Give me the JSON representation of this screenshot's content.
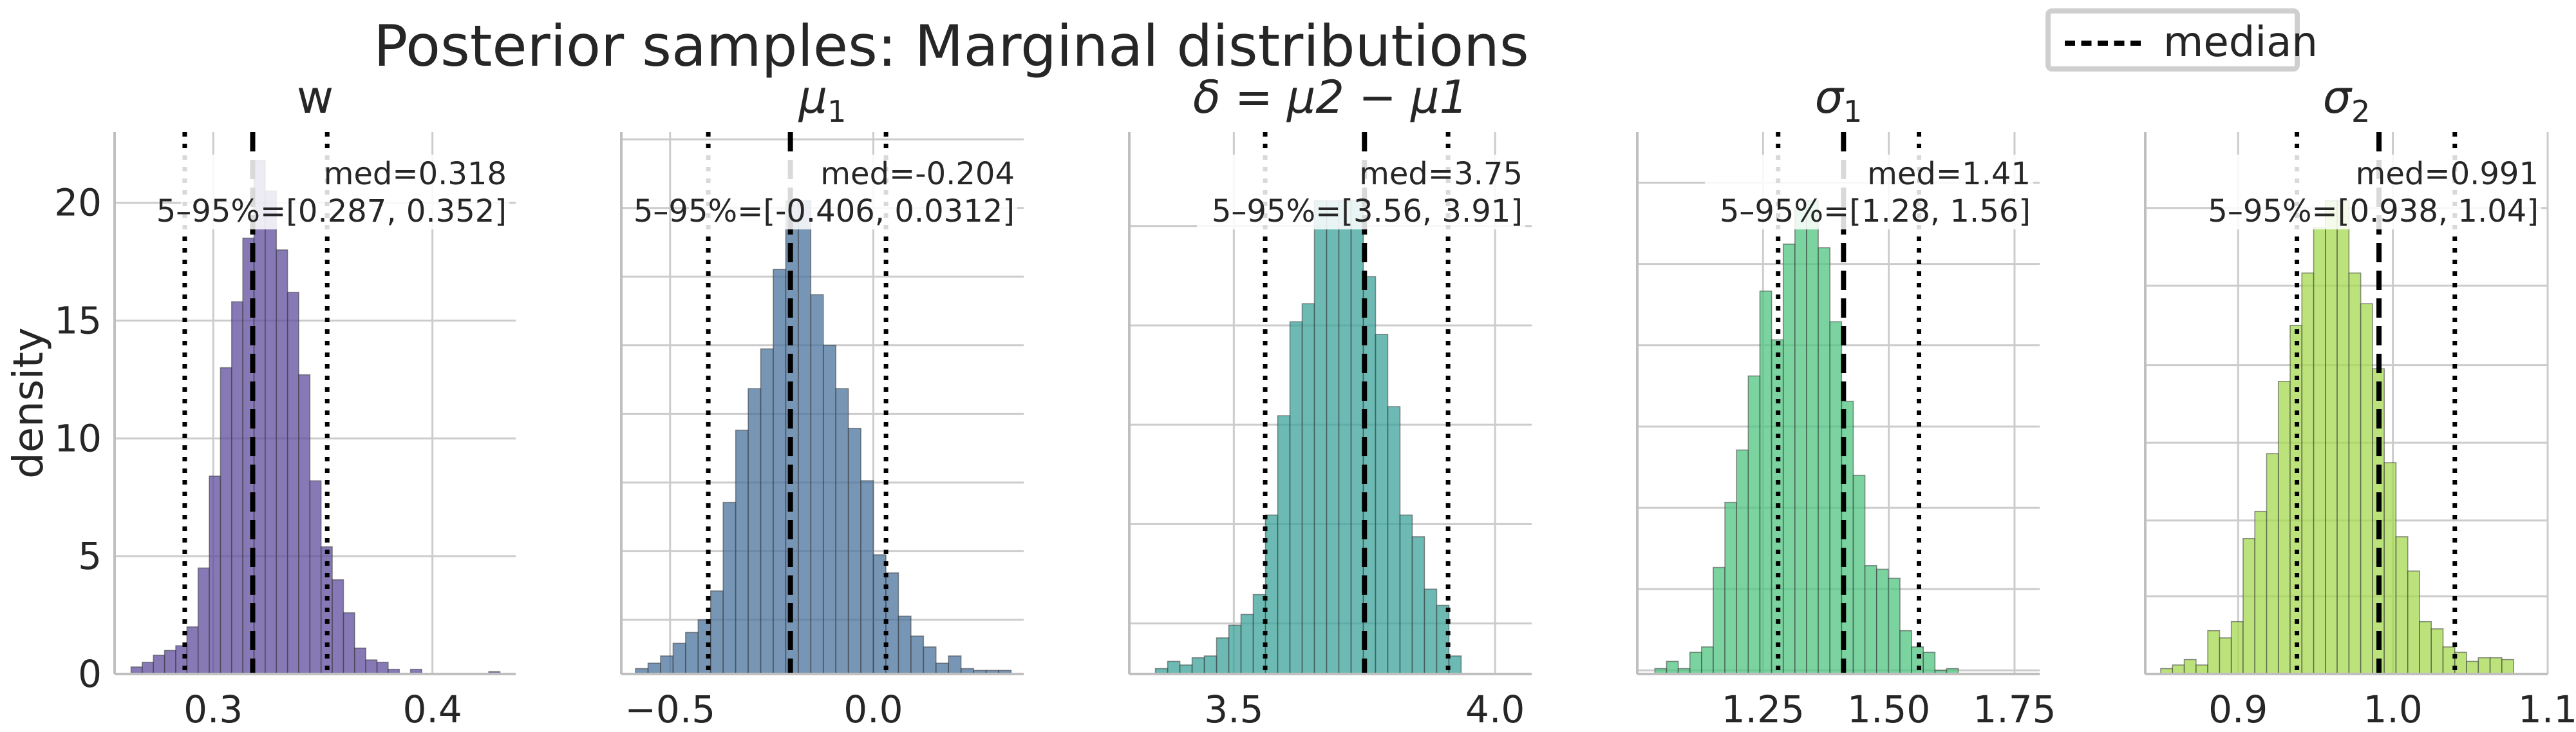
{
  "figure": {
    "suptitle": "Posterior samples: Marginal distributions",
    "legend": {
      "entries": [
        {
          "label": "median",
          "style": "dashed",
          "color": "#000000"
        }
      ],
      "placement": "top-right"
    }
  },
  "chart_data": [
    {
      "type": "bar",
      "title": "w",
      "xlabel": "",
      "ylabel": "density",
      "xlim": [
        0.255,
        0.438
      ],
      "ylim": [
        0,
        23
      ],
      "xticks": [
        0.3,
        0.4
      ],
      "xtick_labels": [
        "0.3",
        "0.4"
      ],
      "yticks": [
        0,
        5,
        10,
        15,
        20
      ],
      "ytick_labels": [
        "0",
        "5",
        "10",
        "15",
        "20"
      ],
      "grid": true,
      "color": "#5e4c9c",
      "bin_start": 0.2625,
      "bin_width": 0.0051,
      "values": [
        0.3,
        0.5,
        0.8,
        1.0,
        1.2,
        2.0,
        4.5,
        8.4,
        13.0,
        15.8,
        18.5,
        21.8,
        20.5,
        18.0,
        16.2,
        12.7,
        8.2,
        5.4,
        4.0,
        2.6,
        1.1,
        0.6,
        0.5,
        0.2,
        0.0,
        0.2,
        0.0,
        0.0,
        0.0,
        0.0,
        0.0,
        0.0,
        0.1
      ],
      "median": 0.318,
      "q05": 0.287,
      "q95": 0.352,
      "annotation": [
        "med=0.318",
        "5–95%=[0.287, 0.352]"
      ]
    },
    {
      "type": "bar",
      "title": "μ1",
      "xlabel": "",
      "ylabel": "",
      "xlim": [
        -0.62,
        0.37
      ],
      "ylim": [
        0,
        3.0
      ],
      "xticks": [
        -0.5,
        0.0
      ],
      "xtick_labels": [
        "−0.5",
        "0.0"
      ],
      "ytick_positions": [
        0.3,
        0.68,
        1.06,
        1.44,
        1.82,
        2.2,
        2.58,
        2.96
      ],
      "grid": true,
      "color": "#4a719c",
      "bin_start": -0.585,
      "bin_width": 0.0308,
      "values": [
        0.03,
        0.06,
        0.1,
        0.17,
        0.23,
        0.3,
        0.46,
        0.95,
        1.35,
        1.58,
        1.8,
        2.24,
        2.62,
        2.62,
        2.1,
        1.82,
        1.58,
        1.36,
        1.07,
        0.66,
        0.56,
        0.32,
        0.21,
        0.15,
        0.06,
        0.1,
        0.03,
        0.02,
        0.02,
        0.02
      ],
      "median": -0.204,
      "q05": -0.406,
      "q95": 0.0312,
      "annotation": [
        "med=-0.204",
        "5–95%=[-0.406, 0.0312]"
      ]
    },
    {
      "type": "bar",
      "title": "δ = μ2 − μ1",
      "xlabel": "",
      "ylabel": "",
      "xlim": [
        3.3,
        4.07
      ],
      "ylim": [
        0,
        3.0
      ],
      "xticks": [
        3.5,
        4.0
      ],
      "xtick_labels": [
        "3.5",
        "4.0"
      ],
      "ytick_positions": [
        0.28,
        0.83,
        1.38,
        1.93,
        2.48
      ],
      "grid": true,
      "color": "#3ba39a",
      "bin_start": 3.35,
      "bin_width": 0.0234,
      "values": [
        0.03,
        0.07,
        0.05,
        0.09,
        0.1,
        0.2,
        0.27,
        0.33,
        0.44,
        0.88,
        1.43,
        1.95,
        2.05,
        2.62,
        2.62,
        2.62,
        2.62,
        2.2,
        1.88,
        1.48,
        0.88,
        0.76,
        0.47,
        0.38,
        0.1
      ],
      "median": 3.75,
      "q05": 3.56,
      "q95": 3.91,
      "annotation": [
        "med=3.75",
        "5–95%=[3.56, 3.91]"
      ]
    },
    {
      "type": "bar",
      "title": "σ1",
      "xlabel": "",
      "ylabel": "",
      "xlim": [
        1.0,
        1.8
      ],
      "ylim": [
        0,
        3.0
      ],
      "xticks": [
        1.25,
        1.5,
        1.75
      ],
      "xtick_labels": [
        "1.25",
        "1.50",
        "1.75"
      ],
      "ytick_positions": [
        0.02,
        0.47,
        0.92,
        1.37,
        1.82,
        2.27,
        2.72
      ],
      "grid": true,
      "color": "#4fc480",
      "bin_start": 1.035,
      "bin_width": 0.0232,
      "values": [
        0.03,
        0.07,
        0.03,
        0.12,
        0.15,
        0.59,
        0.95,
        1.24,
        1.65,
        2.12,
        1.85,
        2.38,
        2.58,
        2.62,
        2.36,
        1.95,
        1.51,
        1.1,
        0.6,
        0.58,
        0.53,
        0.24,
        0.15,
        0.12,
        0.02,
        0.03
      ],
      "median": 1.41,
      "q05": 1.28,
      "q95": 1.56,
      "annotation": [
        "med=1.41",
        "5–95%=[1.28, 1.56]"
      ]
    },
    {
      "type": "bar",
      "title": "σ2",
      "xlabel": "",
      "ylabel": "",
      "xlim": [
        0.84,
        1.1
      ],
      "ylim": [
        0,
        3.0
      ],
      "xticks": [
        0.9,
        1.0,
        1.1
      ],
      "xtick_labels": [
        "0.9",
        "1.0",
        "1.1"
      ],
      "ytick_positions": [
        0.0,
        0.43,
        0.85,
        1.28,
        1.71,
        2.15,
        2.58
      ],
      "grid": true,
      "color": "#a6d94f",
      "bin_start": 0.85,
      "bin_width": 0.0076,
      "values": [
        0.03,
        0.05,
        0.08,
        0.05,
        0.24,
        0.2,
        0.29,
        0.75,
        0.9,
        1.22,
        1.62,
        1.93,
        2.22,
        2.47,
        2.62,
        2.62,
        2.22,
        2.05,
        1.69,
        1.17,
        0.76,
        0.57,
        0.29,
        0.25,
        0.15,
        0.12,
        0.07,
        0.09,
        0.09,
        0.08
      ],
      "median": 0.991,
      "q05": 0.938,
      "q95": 1.04,
      "annotation": [
        "med=0.991",
        "5–95%=[0.938, 1.04]"
      ]
    }
  ]
}
